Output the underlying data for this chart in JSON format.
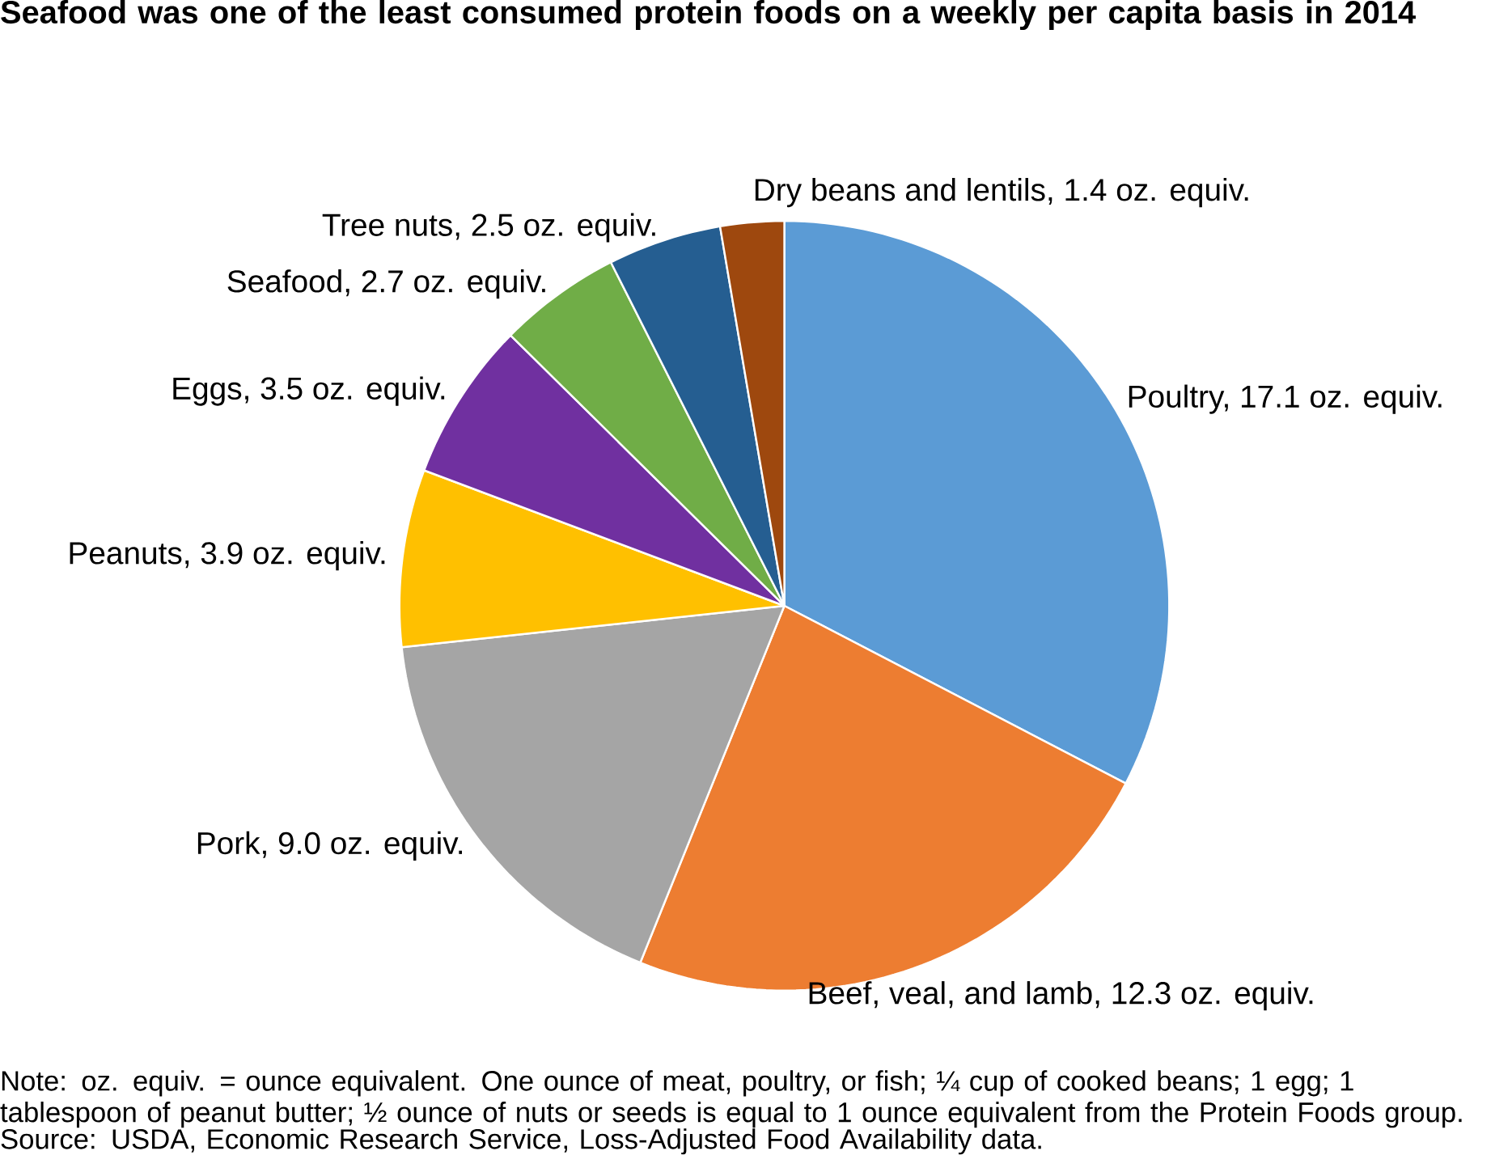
{
  "chart_data": {
    "type": "pie",
    "title": "Seafood was one of the least consumed protein foods on a weekly per capita basis in 2014",
    "categories": [
      "Poultry, 17.1 oz. equiv.",
      "Beef, veal, and lamb, 12.3 oz. equiv.",
      "Pork, 9.0 oz. equiv.",
      "Peanuts, 3.9 oz. equiv.",
      "Eggs, 3.5 oz. equiv.",
      "Seafood, 2.7 oz. equiv.",
      "Tree nuts, 2.5 oz. equiv.",
      "Dry beans and lentils, 1.4 oz. equiv."
    ],
    "values": [
      17.1,
      12.3,
      9.0,
      3.9,
      3.5,
      2.7,
      2.5,
      1.4
    ],
    "colors": [
      "#5b9bd5",
      "#ed7d31",
      "#a5a5a5",
      "#ffc000",
      "#7030a0",
      "#70ad47",
      "#255e91",
      "#9e480e"
    ],
    "annotations": [
      "Note: oz. equiv. = ounce equivalent. One ounce of meat, poultry, or fish; ¼ cup of cooked beans; 1 egg; 1 tablespoon of peanut butter; ½ ounce of nuts or seeds is equal to 1 ounce equivalent from the Protein Foods group.",
      "Source: USDA, Economic Research Service, Loss-Adjusted Food Availability data."
    ]
  }
}
